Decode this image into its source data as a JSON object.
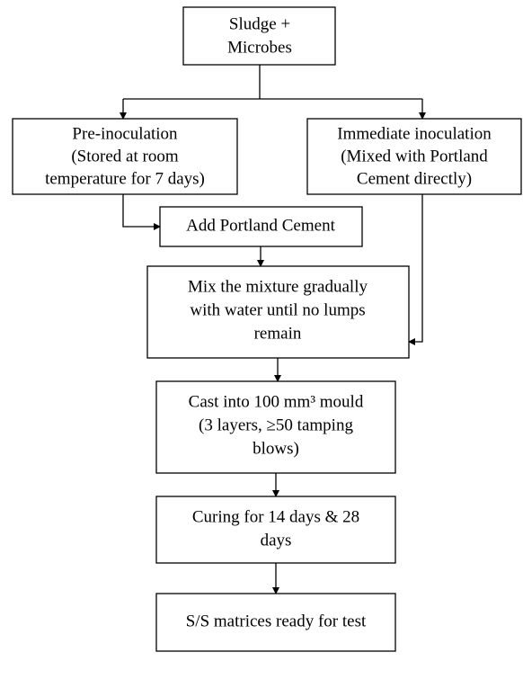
{
  "nodes": [
    {
      "lines": [
        "Sludge  +",
        "Microbes"
      ]
    },
    {
      "lines": [
        "Pre-inoculation",
        "(Stored at room",
        "temperature for 7 days)"
      ]
    },
    {
      "lines": [
        "Immediate inoculation",
        "(Mixed with Portland",
        "Cement directly)"
      ]
    },
    {
      "lines": [
        "Add Portland Cement"
      ]
    },
    {
      "lines": [
        "Mix the mixture gradually",
        "with water until no lumps",
        "remain"
      ]
    },
    {
      "lines": [
        "Cast into 100 mm³ mould",
        "(3 layers, ≥50 tamping",
        "blows)"
      ]
    },
    {
      "lines": [
        "Curing for 14 days & 28",
        "days"
      ]
    },
    {
      "lines": [
        "S/S matrices ready for test"
      ]
    }
  ]
}
